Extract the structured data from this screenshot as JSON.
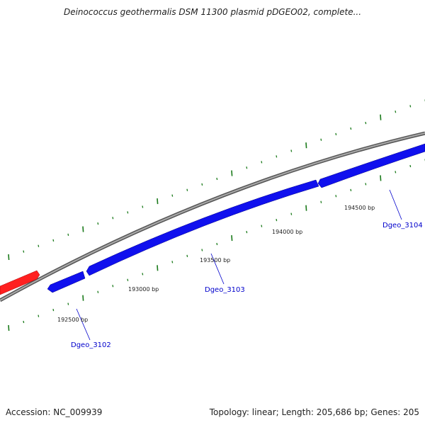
{
  "title": "Deinococcus geothermalis DSM 11300 plasmid pDGEO02, complete...",
  "footer": {
    "accession": "Accession: NC_009939",
    "summary": "Topology: linear; Length: 205,686 bp; Genes: 205"
  },
  "colors": {
    "backbone": "#888888",
    "gene_forward": "#0000ff",
    "gene_other": "#ff0000",
    "tick": "#1a7a1a",
    "label": "#0000cc"
  },
  "bp_labels": [
    {
      "text": "192500 bp"
    },
    {
      "text": "193000 bp"
    },
    {
      "text": "193500 bp"
    },
    {
      "text": "194000 bp"
    },
    {
      "text": "194500 bp"
    }
  ],
  "genes": [
    {
      "name": "Dgeo_3102"
    },
    {
      "name": "Dgeo_3103"
    },
    {
      "name": "Dgeo_3104"
    }
  ]
}
